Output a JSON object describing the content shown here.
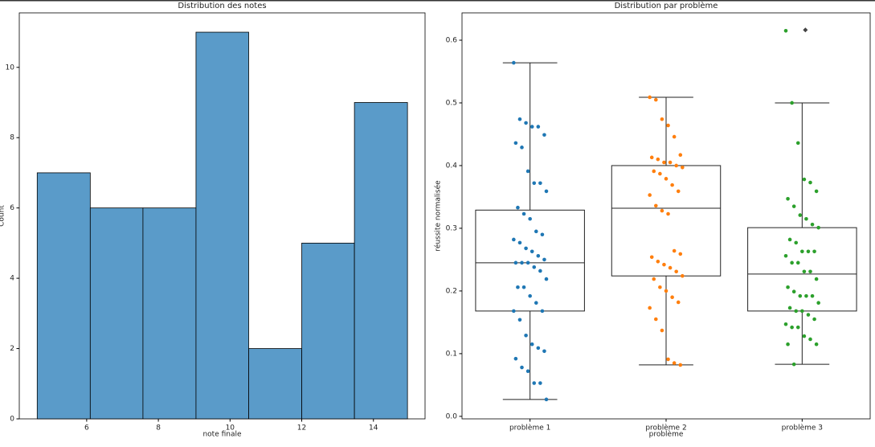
{
  "chart_data": [
    {
      "type": "histogram",
      "title": "Distribution des notes",
      "x_label": "note finale",
      "y_label": "Count",
      "bins": [
        4.62,
        6.1,
        7.57,
        9.05,
        10.52,
        12.0,
        13.47,
        14.95
      ],
      "counts": [
        7,
        6,
        6,
        11,
        2,
        5,
        9
      ],
      "color": "#5a9bc9",
      "xlim": [
        4.12,
        15.44
      ],
      "xticks": [
        6,
        8,
        10,
        12,
        14
      ],
      "ylim": [
        0,
        11.55
      ],
      "yticks": [
        0,
        2,
        4,
        6,
        8,
        10
      ]
    },
    {
      "type": "box",
      "title": "Distribution par problème",
      "x_label": "problème",
      "y_label": "réussite normalisée",
      "categories": [
        "problème 1",
        "problème 2",
        "problème 3"
      ],
      "ylim": [
        -0.004,
        0.6436
      ],
      "yticks": [
        {
          "value": 0,
          "label": "0.0"
        },
        0.1,
        0.2,
        0.3,
        0.4,
        0.5,
        0.6
      ],
      "boxes": [
        {
          "whislo": 0.027,
          "q1": 0.168,
          "med": 0.245,
          "q3": 0.329,
          "whishi": 0.564,
          "fliers": [],
          "color": "#1f77b4",
          "points": [
            0.564,
            0.474,
            0.468,
            0.462,
            0.462,
            0.449,
            0.436,
            0.429,
            0.391,
            0.372,
            0.372,
            0.359,
            0.333,
            0.323,
            0.315,
            0.295,
            0.29,
            0.282,
            0.277,
            0.268,
            0.263,
            0.256,
            0.25,
            0.245,
            0.245,
            0.245,
            0.238,
            0.232,
            0.219,
            0.206,
            0.206,
            0.192,
            0.181,
            0.168,
            0.168,
            0.154,
            0.129,
            0.115,
            0.109,
            0.104,
            0.092,
            0.078,
            0.072,
            0.053,
            0.053,
            0.027
          ]
        },
        {
          "whislo": 0.082,
          "q1": 0.224,
          "med": 0.332,
          "q3": 0.4,
          "whishi": 0.509,
          "fliers": [],
          "color": "#ff7f0e",
          "points": [
            0.509,
            0.505,
            0.474,
            0.464,
            0.446,
            0.417,
            0.413,
            0.41,
            0.405,
            0.405,
            0.4,
            0.397,
            0.391,
            0.387,
            0.379,
            0.369,
            0.359,
            0.353,
            0.336,
            0.328,
            0.323,
            0.264,
            0.259,
            0.254,
            0.247,
            0.242,
            0.237,
            0.231,
            0.224,
            0.219,
            0.206,
            0.2,
            0.19,
            0.182,
            0.173,
            0.155,
            0.137,
            0.091,
            0.085,
            0.082
          ]
        },
        {
          "whislo": 0.083,
          "q1": 0.168,
          "med": 0.227,
          "q3": 0.301,
          "whishi": 0.5,
          "fliers": [
            0.615
          ],
          "color": "#2ca02c",
          "points": [
            0.615,
            0.5,
            0.436,
            0.378,
            0.373,
            0.359,
            0.347,
            0.335,
            0.321,
            0.315,
            0.306,
            0.301,
            0.282,
            0.277,
            0.263,
            0.263,
            0.263,
            0.256,
            0.245,
            0.245,
            0.231,
            0.231,
            0.219,
            0.206,
            0.199,
            0.192,
            0.192,
            0.192,
            0.181,
            0.173,
            0.168,
            0.168,
            0.162,
            0.155,
            0.147,
            0.142,
            0.142,
            0.128,
            0.123,
            0.115,
            0.115,
            0.083
          ]
        }
      ]
    }
  ]
}
